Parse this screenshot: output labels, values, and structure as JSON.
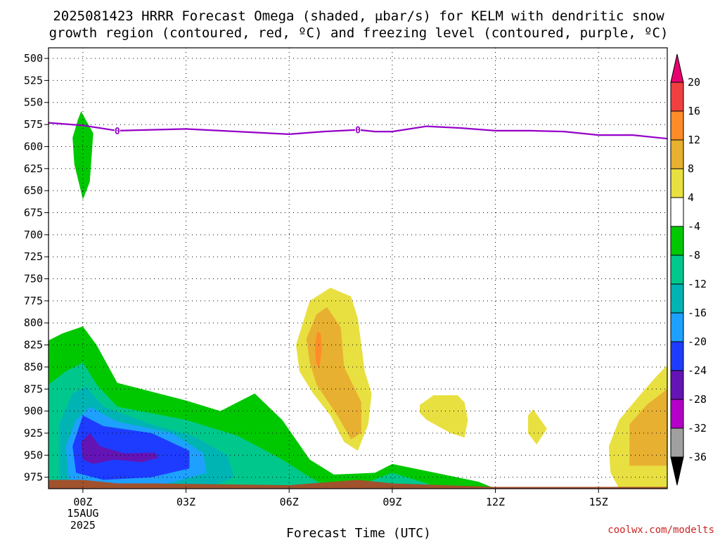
{
  "chart_data": {
    "type": "contour",
    "title_line1": "2025081423 HRRR Forecast Omega (shaded, μbar/s) for KELM with dendritic snow",
    "title_line2": "growth region (contoured, red, ºC) and freezing level (contoured, purple, ºC)",
    "xlabel": "Forecast Time (UTC)",
    "credit": "coolwx.com/modelts",
    "x_ticks": [
      {
        "t": 0,
        "label": "00Z",
        "sub1": "15AUG",
        "sub2": "2025"
      },
      {
        "t": 3,
        "label": "03Z"
      },
      {
        "t": 6,
        "label": "06Z"
      },
      {
        "t": 9,
        "label": "09Z"
      },
      {
        "t": 12,
        "label": "12Z"
      },
      {
        "t": 15,
        "label": "15Z"
      }
    ],
    "x_range": [
      -1,
      17
    ],
    "y_range": [
      488,
      988
    ],
    "y_ticks": [
      500,
      525,
      550,
      575,
      600,
      625,
      650,
      675,
      700,
      725,
      750,
      775,
      800,
      825,
      850,
      875,
      900,
      925,
      950,
      975
    ],
    "colorbar": {
      "levels": [
        20,
        16,
        12,
        8,
        4,
        -4,
        -8,
        -12,
        -16,
        -20,
        -24,
        -28,
        -32,
        -36
      ],
      "colors": [
        "#e8006e",
        "#f04040",
        "#ff8c28",
        "#e8b030",
        "#e8e040",
        "#ffffff",
        "#00c800",
        "#00c88c",
        "#00b4b4",
        "#1ea0ff",
        "#1e3cff",
        "#6414b4",
        "#b400c8",
        "#a0a0a0",
        "#000000"
      ]
    },
    "freezing_level": {
      "label": "0",
      "points": [
        [
          -1,
          573
        ],
        [
          0,
          576
        ],
        [
          1,
          582
        ],
        [
          2,
          581
        ],
        [
          3,
          580
        ],
        [
          4,
          582
        ],
        [
          5,
          584
        ],
        [
          6,
          586
        ],
        [
          7,
          583
        ],
        [
          8,
          581
        ],
        [
          8.5,
          583
        ],
        [
          9,
          583
        ],
        [
          9.5,
          580
        ],
        [
          10,
          577
        ],
        [
          11,
          579
        ],
        [
          12,
          582
        ],
        [
          13,
          582
        ],
        [
          14,
          583
        ],
        [
          15,
          587
        ],
        [
          16,
          587
        ],
        [
          17,
          591
        ]
      ],
      "label_times": [
        1,
        8
      ],
      "color": "#9400c8"
    },
    "omega_regions": [
      {
        "value": "-8",
        "color": "#00c800",
        "points": [
          [
            -1,
            820
          ],
          [
            -0.6,
            812
          ],
          [
            0,
            804
          ],
          [
            0.4,
            825
          ],
          [
            1,
            868
          ],
          [
            3,
            888
          ],
          [
            4,
            900
          ],
          [
            5,
            880
          ],
          [
            5.8,
            910
          ],
          [
            6.6,
            955
          ],
          [
            7.3,
            972
          ],
          [
            8.5,
            970
          ],
          [
            9,
            960
          ],
          [
            10,
            968
          ],
          [
            11.5,
            980
          ],
          [
            12,
            988
          ],
          [
            -1,
            988
          ]
        ]
      },
      {
        "value": "-8",
        "color": "#00c800",
        "points": [
          [
            -0.05,
            560
          ],
          [
            0.3,
            585
          ],
          [
            0.2,
            640
          ],
          [
            0,
            660
          ],
          [
            -0.25,
            620
          ],
          [
            -0.3,
            590
          ],
          [
            -0.15,
            570
          ]
        ]
      },
      {
        "value": "-12",
        "color": "#00c88c",
        "points": [
          [
            -1,
            870
          ],
          [
            -0.5,
            855
          ],
          [
            0,
            845
          ],
          [
            0.4,
            870
          ],
          [
            1,
            895
          ],
          [
            3,
            910
          ],
          [
            4.5,
            928
          ],
          [
            5.8,
            955
          ],
          [
            6.6,
            975
          ],
          [
            7.2,
            988
          ],
          [
            -1,
            988
          ]
        ]
      },
      {
        "value": "-12",
        "color": "#00c88c",
        "points": [
          [
            8.3,
            980
          ],
          [
            9,
            970
          ],
          [
            10,
            982
          ],
          [
            10.5,
            988
          ],
          [
            8.3,
            988
          ]
        ]
      },
      {
        "value": "-16",
        "color": "#00b4b4",
        "points": [
          [
            -0.7,
            988
          ],
          [
            -0.7,
            915
          ],
          [
            -0.3,
            880
          ],
          [
            0.1,
            872
          ],
          [
            0.6,
            895
          ],
          [
            2,
            915
          ],
          [
            3.2,
            928
          ],
          [
            4.2,
            950
          ],
          [
            4.4,
            975
          ],
          [
            3.6,
            988
          ]
        ]
      },
      {
        "value": "-20",
        "color": "#1ea0ff",
        "points": [
          [
            -0.4,
            980
          ],
          [
            -0.5,
            940
          ],
          [
            -0.2,
            910
          ],
          [
            0.2,
            895
          ],
          [
            1,
            912
          ],
          [
            2.6,
            925
          ],
          [
            3.5,
            948
          ],
          [
            3.6,
            970
          ],
          [
            2.5,
            982
          ],
          [
            1,
            985
          ]
        ]
      },
      {
        "value": "-24",
        "color": "#1e3cff",
        "points": [
          [
            -0.2,
            970
          ],
          [
            -0.3,
            940
          ],
          [
            0,
            905
          ],
          [
            0.6,
            917
          ],
          [
            2,
            925
          ],
          [
            3.1,
            945
          ],
          [
            3.1,
            965
          ],
          [
            2,
            975
          ],
          [
            0.6,
            978
          ]
        ]
      },
      {
        "value": "-28",
        "color": "#6414b4",
        "points": [
          [
            0,
            955
          ],
          [
            -0.05,
            935
          ],
          [
            0.2,
            925
          ],
          [
            0.5,
            940
          ],
          [
            1.2,
            948
          ],
          [
            2.1,
            947
          ],
          [
            2.2,
            953
          ],
          [
            1.7,
            958
          ],
          [
            0.9,
            955
          ],
          [
            0.3,
            960
          ]
        ]
      },
      {
        "value": "8",
        "color": "#e8e040",
        "points": [
          [
            6.2,
            825
          ],
          [
            6.6,
            775
          ],
          [
            7.2,
            760
          ],
          [
            7.8,
            770
          ],
          [
            8,
            795
          ],
          [
            8.2,
            855
          ],
          [
            8.4,
            880
          ],
          [
            8.3,
            915
          ],
          [
            8,
            945
          ],
          [
            7.6,
            935
          ],
          [
            7.2,
            905
          ],
          [
            6.7,
            880
          ],
          [
            6.3,
            855
          ]
        ]
      },
      {
        "value": "12",
        "color": "#e8b030",
        "points": [
          [
            6.5,
            818
          ],
          [
            6.8,
            790
          ],
          [
            7.1,
            782
          ],
          [
            7.5,
            805
          ],
          [
            7.6,
            850
          ],
          [
            8.1,
            890
          ],
          [
            8.1,
            925
          ],
          [
            7.8,
            932
          ],
          [
            7.4,
            905
          ],
          [
            6.8,
            870
          ],
          [
            6.6,
            845
          ]
        ]
      },
      {
        "value": "16",
        "color": "#ff8c28",
        "points": [
          [
            6.75,
            825
          ],
          [
            6.82,
            810
          ],
          [
            6.92,
            812
          ],
          [
            6.95,
            830
          ],
          [
            6.88,
            852
          ],
          [
            6.78,
            845
          ]
        ]
      },
      {
        "value": "8",
        "color": "#e8e040",
        "points": [
          [
            9.8,
            893
          ],
          [
            10.2,
            882
          ],
          [
            10.9,
            882
          ],
          [
            11.1,
            890
          ],
          [
            11.2,
            910
          ],
          [
            11.1,
            930
          ],
          [
            10.7,
            925
          ],
          [
            10,
            910
          ],
          [
            9.8,
            902
          ]
        ]
      },
      {
        "value": "8",
        "color": "#e8e040",
        "points": [
          [
            12.95,
            905
          ],
          [
            13.1,
            898
          ],
          [
            13.5,
            920
          ],
          [
            13.2,
            938
          ],
          [
            12.95,
            925
          ]
        ]
      },
      {
        "value": "8",
        "color": "#e8e040",
        "points": [
          [
            15.3,
            940
          ],
          [
            15.6,
            910
          ],
          [
            16.2,
            882
          ],
          [
            16.7,
            860
          ],
          [
            17,
            848
          ],
          [
            17,
            988
          ],
          [
            15.6,
            988
          ],
          [
            15.35,
            970
          ]
        ]
      },
      {
        "value": "12",
        "color": "#e8b030",
        "points": [
          [
            15.9,
            915
          ],
          [
            16.4,
            893
          ],
          [
            17,
            875
          ],
          [
            17,
            962
          ],
          [
            15.9,
            962
          ]
        ]
      }
    ],
    "terrain": {
      "color": "#a0522d",
      "points": [
        [
          -1,
          978
        ],
        [
          0,
          978
        ],
        [
          1,
          982
        ],
        [
          2,
          982
        ],
        [
          6,
          984
        ],
        [
          8,
          978
        ],
        [
          9,
          982
        ],
        [
          12,
          986
        ],
        [
          17,
          986
        ],
        [
          17,
          990
        ],
        [
          -1,
          990
        ]
      ]
    }
  }
}
